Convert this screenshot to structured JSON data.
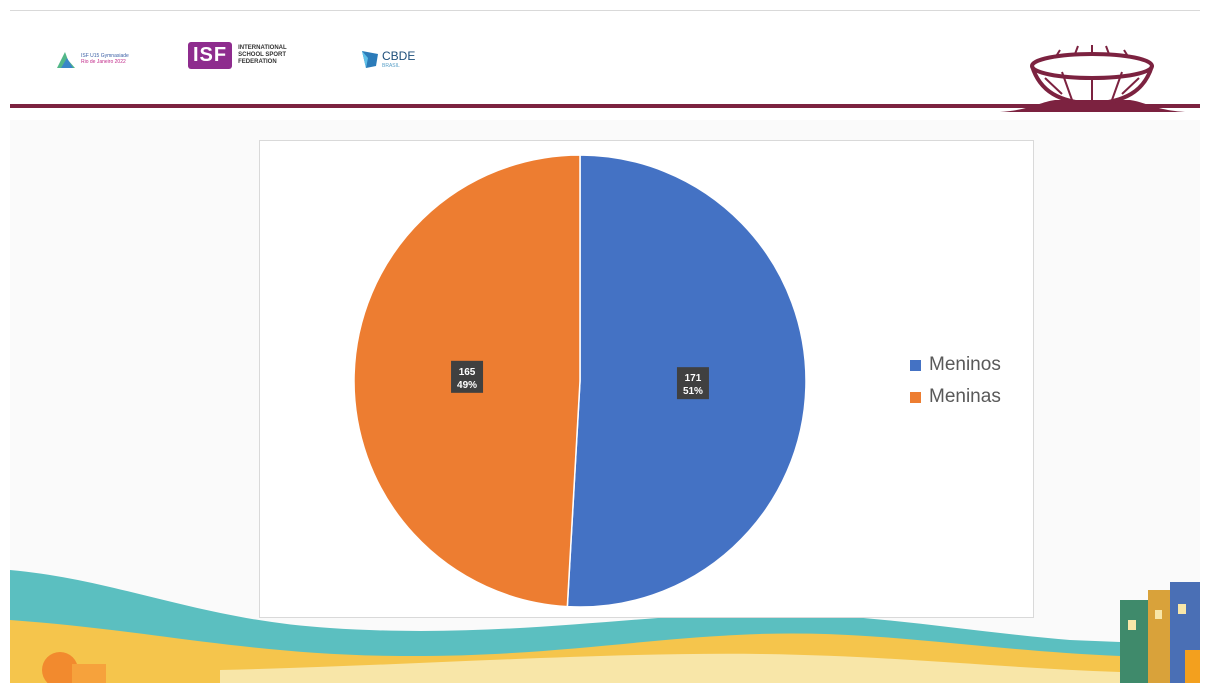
{
  "header": {
    "logos": {
      "gymnasiade_line1": "ISF U15 Gymnasiade",
      "gymnasiade_line2": "Rio de Janeiro 2022",
      "isf_mark": "ISF",
      "isf_name": "INTERNATIONAL SCHOOL SPORT FEDERATION",
      "cbde_mark": "CBDE",
      "cbde_sub": "BRASIL"
    },
    "colors": {
      "rule": "#7c2240",
      "stadium": "#7c2240",
      "isf": "#8e2c8e"
    },
    "icons": [
      "gymnasiade-logo-icon",
      "cbde-logo-icon",
      "stadium-icon"
    ]
  },
  "chart_data": {
    "type": "pie",
    "title": "",
    "categories": [
      "Meninos",
      "Meninas"
    ],
    "values": [
      171,
      165
    ],
    "percent_labels": [
      "51%",
      "49%"
    ],
    "colors": [
      "#4472c4",
      "#ed7d31"
    ],
    "start_angle_deg": 0,
    "direction": "clockwise",
    "data_labels": "value and percentage",
    "legend": "right"
  },
  "footer": {
    "colors": {
      "teal": "#5bbfc0",
      "yellow": "#f5c54c",
      "sand": "#f8e6a8"
    },
    "icons": [
      "beach-wave-icon",
      "favela-houses-icon",
      "sun-logo-icon"
    ]
  }
}
